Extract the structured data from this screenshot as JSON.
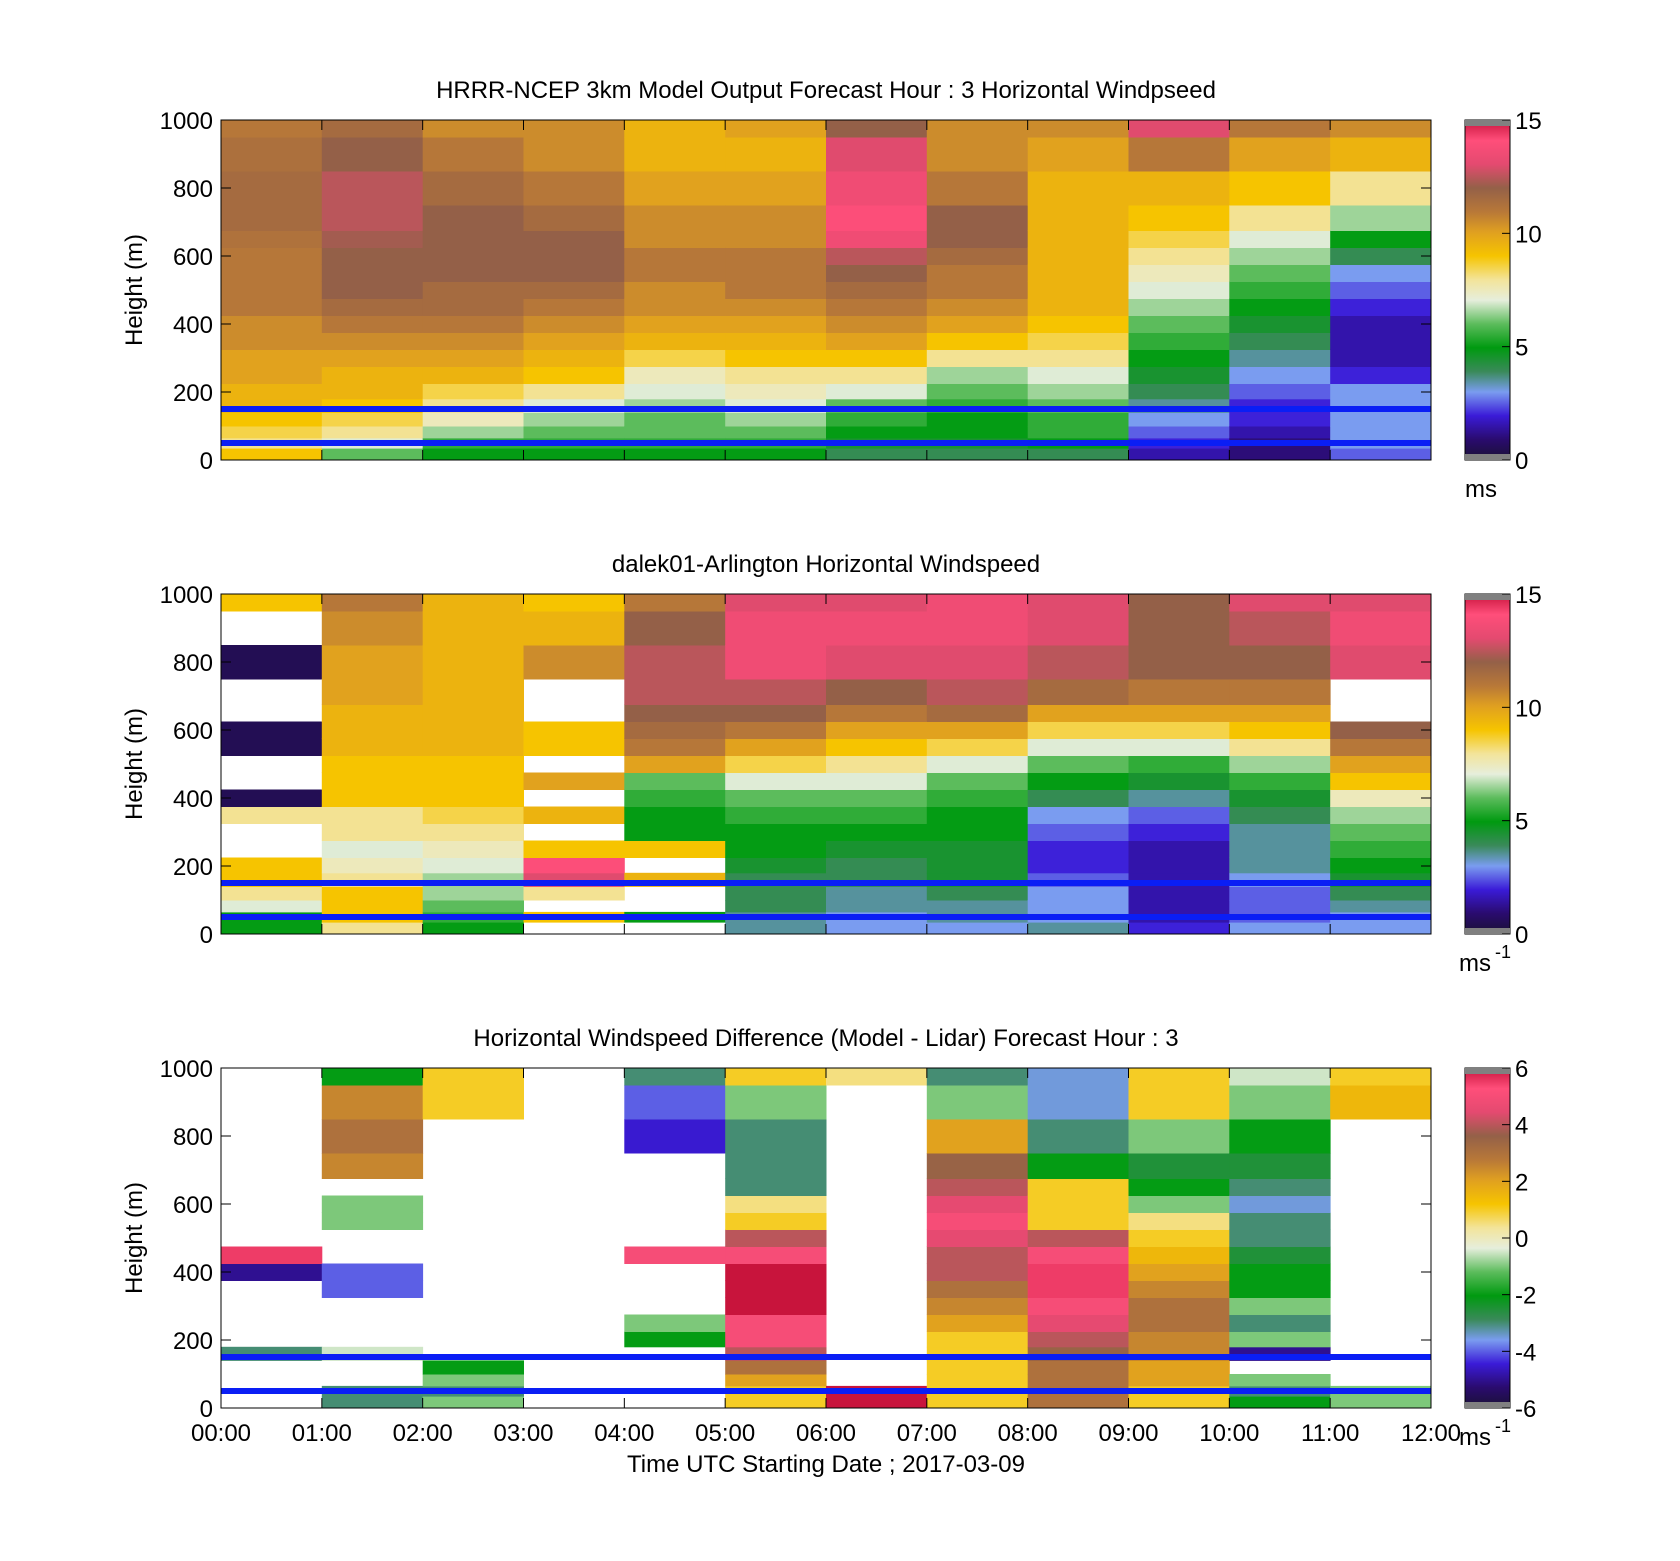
{
  "chart_data": [
    {
      "type": "heatmap",
      "title": "HRRR-NCEP 3km Model Output   Forecast Hour : 3 Horizontal Windpseed",
      "ylabel": "Height (m)",
      "xlabel": "",
      "ylim": [
        0,
        1000
      ],
      "yticks": [
        "0",
        "200",
        "400",
        "600",
        "800",
        "1000"
      ],
      "colorbar": {
        "min": 0,
        "max": 15,
        "ticks": [
          "0",
          "5",
          "10",
          "15"
        ],
        "unit_label": "ms",
        "unit_sup": ""
      },
      "reference_lines_m": [
        50,
        150
      ],
      "x_hours": [
        0,
        1,
        2,
        3,
        4,
        5,
        6,
        7,
        8,
        9,
        10,
        11,
        12
      ],
      "height_levels_m": [
        20,
        50,
        80,
        120,
        160,
        200,
        250,
        300,
        350,
        400,
        450,
        500,
        550,
        600,
        650,
        700,
        800,
        900,
        1000
      ],
      "values_by_hour": [
        [
          9,
          8,
          8.5,
          9,
          9.5,
          9.5,
          10,
          10,
          10.5,
          10.5,
          11,
          11,
          11,
          11,
          11.2,
          11.5,
          11.5,
          11.3,
          11
        ],
        [
          6,
          7,
          8,
          8.5,
          9,
          9.5,
          9.5,
          10,
          10.5,
          11,
          11.5,
          12,
          12,
          12,
          12.2,
          12.5,
          12.5,
          12,
          11.5
        ],
        [
          5,
          5.5,
          6.5,
          7.5,
          8,
          8.5,
          9.5,
          10,
          10.5,
          11,
          11.5,
          11.5,
          12,
          12,
          12,
          12,
          11.5,
          11,
          10.5
        ],
        [
          5,
          5.5,
          6,
          6.5,
          7,
          8,
          9,
          9.5,
          10,
          10.5,
          11,
          11.5,
          12,
          12,
          12,
          11.5,
          11,
          10.5,
          10.5
        ],
        [
          5,
          5.5,
          6,
          6,
          6.5,
          7,
          7.5,
          8.5,
          9.5,
          10,
          10.5,
          10.5,
          11,
          11,
          10.5,
          10.5,
          10,
          9.5,
          9.5
        ],
        [
          5,
          5.5,
          6,
          6.5,
          7,
          7.5,
          8,
          9,
          9.5,
          10,
          10.5,
          11,
          11,
          11,
          10.5,
          10.5,
          10,
          9.5,
          10
        ],
        [
          4,
          4.5,
          5,
          5.5,
          6,
          7,
          8,
          9,
          10,
          10.5,
          11,
          11.5,
          12,
          12.5,
          13.5,
          14,
          13.5,
          13,
          12
        ],
        [
          4,
          4.5,
          5,
          5,
          5.5,
          6,
          6.5,
          8,
          9,
          10,
          10.5,
          11,
          11,
          11.5,
          12,
          12,
          11,
          10.5,
          10.5
        ],
        [
          4,
          5,
          5.5,
          5.5,
          6,
          6.5,
          7,
          8,
          8.5,
          9,
          9.5,
          9.5,
          9.5,
          9.5,
          9.5,
          9.5,
          9.5,
          10,
          10.5
        ],
        [
          1.5,
          2,
          2.5,
          3,
          3.5,
          4,
          4.5,
          5,
          5.5,
          6,
          6.5,
          7,
          7.5,
          8,
          8.5,
          9,
          9.5,
          11,
          13
        ],
        [
          1,
          1,
          1.5,
          2,
          2,
          2.5,
          3,
          3.5,
          4,
          4.5,
          5,
          5.5,
          6,
          6.5,
          7,
          8,
          9,
          10,
          11
        ],
        [
          2.5,
          3,
          3,
          3,
          3,
          3,
          2,
          1.5,
          1.5,
          1.5,
          2,
          2.5,
          3,
          4,
          5,
          6.5,
          8,
          9.5,
          10.5
        ]
      ]
    },
    {
      "type": "heatmap",
      "title": "dalek01-Arlington  Horizontal Windspeed",
      "ylabel": "Height (m)",
      "xlabel": "",
      "ylim": [
        0,
        1000
      ],
      "yticks": [
        "0",
        "200",
        "400",
        "600",
        "800",
        "1000"
      ],
      "colorbar": {
        "min": 0,
        "max": 15,
        "ticks": [
          "0",
          "5",
          "10",
          "15"
        ],
        "unit_label": "ms",
        "unit_sup": "-1"
      },
      "reference_lines_m": [
        50,
        150
      ],
      "x_hours": [
        0,
        1,
        2,
        3,
        4,
        5,
        6,
        7,
        8,
        9,
        10,
        11,
        12
      ],
      "height_levels_m": [
        20,
        50,
        80,
        120,
        160,
        200,
        250,
        300,
        350,
        400,
        450,
        500,
        550,
        600,
        650,
        700,
        800,
        900,
        1000
      ],
      "values_by_hour": [
        [
          5,
          5,
          7,
          8,
          9,
          9,
          null,
          null,
          8,
          0.5,
          null,
          null,
          0.5,
          0.5,
          null,
          null,
          0.5,
          null,
          9
        ],
        [
          8,
          9,
          9,
          9,
          8,
          7.5,
          7,
          8,
          8,
          9,
          9,
          9,
          9.5,
          9.5,
          9.5,
          10,
          10,
          10.5,
          11
        ],
        [
          5,
          5.5,
          6,
          6.5,
          6.5,
          7,
          7.5,
          8,
          8.5,
          9,
          9,
          9,
          9.5,
          9.5,
          9.5,
          9.5,
          9.5,
          9.5,
          9.5
        ],
        [
          null,
          9,
          null,
          8,
          13,
          14,
          9,
          null,
          9.5,
          null,
          10,
          null,
          9,
          9,
          null,
          null,
          10.5,
          9.5,
          9
        ],
        [
          null,
          5,
          null,
          null,
          9.5,
          null,
          9,
          5,
          5,
          5.5,
          6,
          10,
          11,
          11.5,
          12,
          12.5,
          12.5,
          12,
          11
        ],
        [
          3.5,
          3.5,
          4,
          4,
          4,
          4.5,
          5,
          5,
          5.5,
          6,
          7,
          8.5,
          10,
          11,
          12,
          12.5,
          13.5,
          13.5,
          13
        ],
        [
          3,
          3,
          3.5,
          3.5,
          4,
          4,
          4.5,
          5,
          5.5,
          6,
          7,
          8,
          9,
          10,
          11,
          12,
          13,
          13.5,
          13
        ],
        [
          3,
          3.5,
          3.5,
          4,
          4.5,
          4.5,
          4.5,
          5,
          5,
          5.5,
          6,
          7,
          8.5,
          10,
          11.5,
          12.5,
          13,
          13.5,
          13.5
        ],
        [
          3.5,
          3,
          3,
          3,
          2.5,
          2,
          2,
          2.5,
          3,
          4,
          5,
          6,
          7,
          8.5,
          10,
          11.5,
          12.5,
          13,
          13
        ],
        [
          2,
          1.5,
          1.5,
          1.5,
          1.5,
          1.5,
          1.5,
          2,
          2.5,
          3.5,
          4.5,
          5.5,
          7,
          8.5,
          10,
          11,
          12,
          12,
          12
        ],
        [
          3,
          2.5,
          2.5,
          2.5,
          3,
          3.5,
          3.5,
          3.5,
          4,
          4.5,
          5.5,
          6.5,
          8,
          9,
          10,
          11,
          12,
          12.5,
          13
        ],
        [
          3,
          3,
          3.5,
          4,
          4.5,
          5,
          5.5,
          6,
          6.5,
          7.5,
          9,
          10,
          11,
          12,
          null,
          null,
          13,
          13.5,
          13
        ]
      ]
    },
    {
      "type": "heatmap",
      "title": "Horizontal Windspeed Difference (Model - Lidar) Forecast Hour : 3",
      "ylabel": "Height (m)",
      "xlabel": "Time UTC  Starting Date ; 2017-03-09",
      "ylim": [
        0,
        1000
      ],
      "yticks": [
        "0",
        "200",
        "400",
        "600",
        "800",
        "1000"
      ],
      "xticks": [
        "00:00",
        "01:00",
        "02:00",
        "03:00",
        "04:00",
        "05:00",
        "06:00",
        "07:00",
        "08:00",
        "09:00",
        "10:00",
        "11:00",
        "12:00"
      ],
      "colorbar": {
        "min": -6,
        "max": 6,
        "ticks": [
          "-6",
          "-4",
          "-2",
          "0",
          "2",
          "4",
          "6"
        ],
        "unit_label": "ms",
        "unit_sup": "-1"
      },
      "reference_lines_m": [
        50,
        150
      ],
      "x_hours": [
        0,
        1,
        2,
        3,
        4,
        5,
        6,
        7,
        8,
        9,
        10,
        11,
        12
      ],
      "height_levels_m": [
        20,
        50,
        80,
        120,
        160,
        200,
        250,
        300,
        350,
        400,
        450,
        500,
        550,
        600,
        650,
        700,
        800,
        900,
        1000
      ],
      "values_by_hour": [
        [
          null,
          null,
          null,
          null,
          -3,
          null,
          null,
          null,
          null,
          -5,
          5.5,
          null,
          null,
          null,
          null,
          null,
          null,
          null,
          null
        ],
        [
          -3,
          -3,
          null,
          null,
          -0.5,
          null,
          null,
          null,
          -4,
          -4,
          null,
          null,
          -1,
          -1,
          null,
          2.5,
          3,
          2.5,
          -2
        ],
        [
          -1,
          -3,
          -1,
          -2,
          null,
          null,
          null,
          null,
          null,
          null,
          null,
          null,
          null,
          null,
          null,
          null,
          null,
          1,
          1
        ],
        [
          null,
          null,
          null,
          null,
          null,
          null,
          null,
          null,
          null,
          null,
          null,
          null,
          null,
          null,
          null,
          null,
          null,
          null,
          null
        ],
        [
          null,
          null,
          null,
          null,
          null,
          -2,
          -1,
          null,
          null,
          null,
          5,
          null,
          null,
          null,
          null,
          null,
          -4.5,
          -4,
          -3
        ],
        [
          1,
          1,
          2,
          3,
          4,
          5,
          5,
          6,
          6,
          6,
          5,
          4,
          1,
          0.5,
          -3,
          -3,
          -3,
          -1,
          1
        ],
        [
          6,
          6,
          null,
          null,
          null,
          null,
          null,
          null,
          null,
          null,
          null,
          null,
          null,
          null,
          null,
          null,
          null,
          null,
          0.5
        ],
        [
          1,
          1,
          1,
          1,
          1,
          1,
          2,
          2.5,
          3,
          4,
          4,
          4.5,
          5,
          4.5,
          4,
          3.5,
          2,
          -1,
          -3
        ],
        [
          3,
          3,
          3,
          3,
          3.5,
          4,
          4.5,
          5,
          5.5,
          5.5,
          5,
          4,
          1,
          1,
          1,
          -2,
          -3,
          -3.5,
          -3.5
        ],
        [
          1,
          1,
          2,
          2,
          2.5,
          2.5,
          3,
          3,
          2.5,
          2,
          1.5,
          1,
          0.5,
          -1,
          -2,
          -2.5,
          -1,
          1,
          1
        ],
        [
          -2,
          -3,
          -1,
          null,
          -5,
          -1,
          -3,
          -1,
          -2,
          -2,
          -2.5,
          -3,
          -3,
          -3.5,
          -3,
          -2.5,
          -2,
          -1,
          -0.5
        ],
        [
          -1,
          -1,
          null,
          null,
          null,
          null,
          null,
          null,
          null,
          null,
          null,
          null,
          null,
          null,
          null,
          null,
          null,
          1.5,
          1
        ]
      ]
    }
  ]
}
